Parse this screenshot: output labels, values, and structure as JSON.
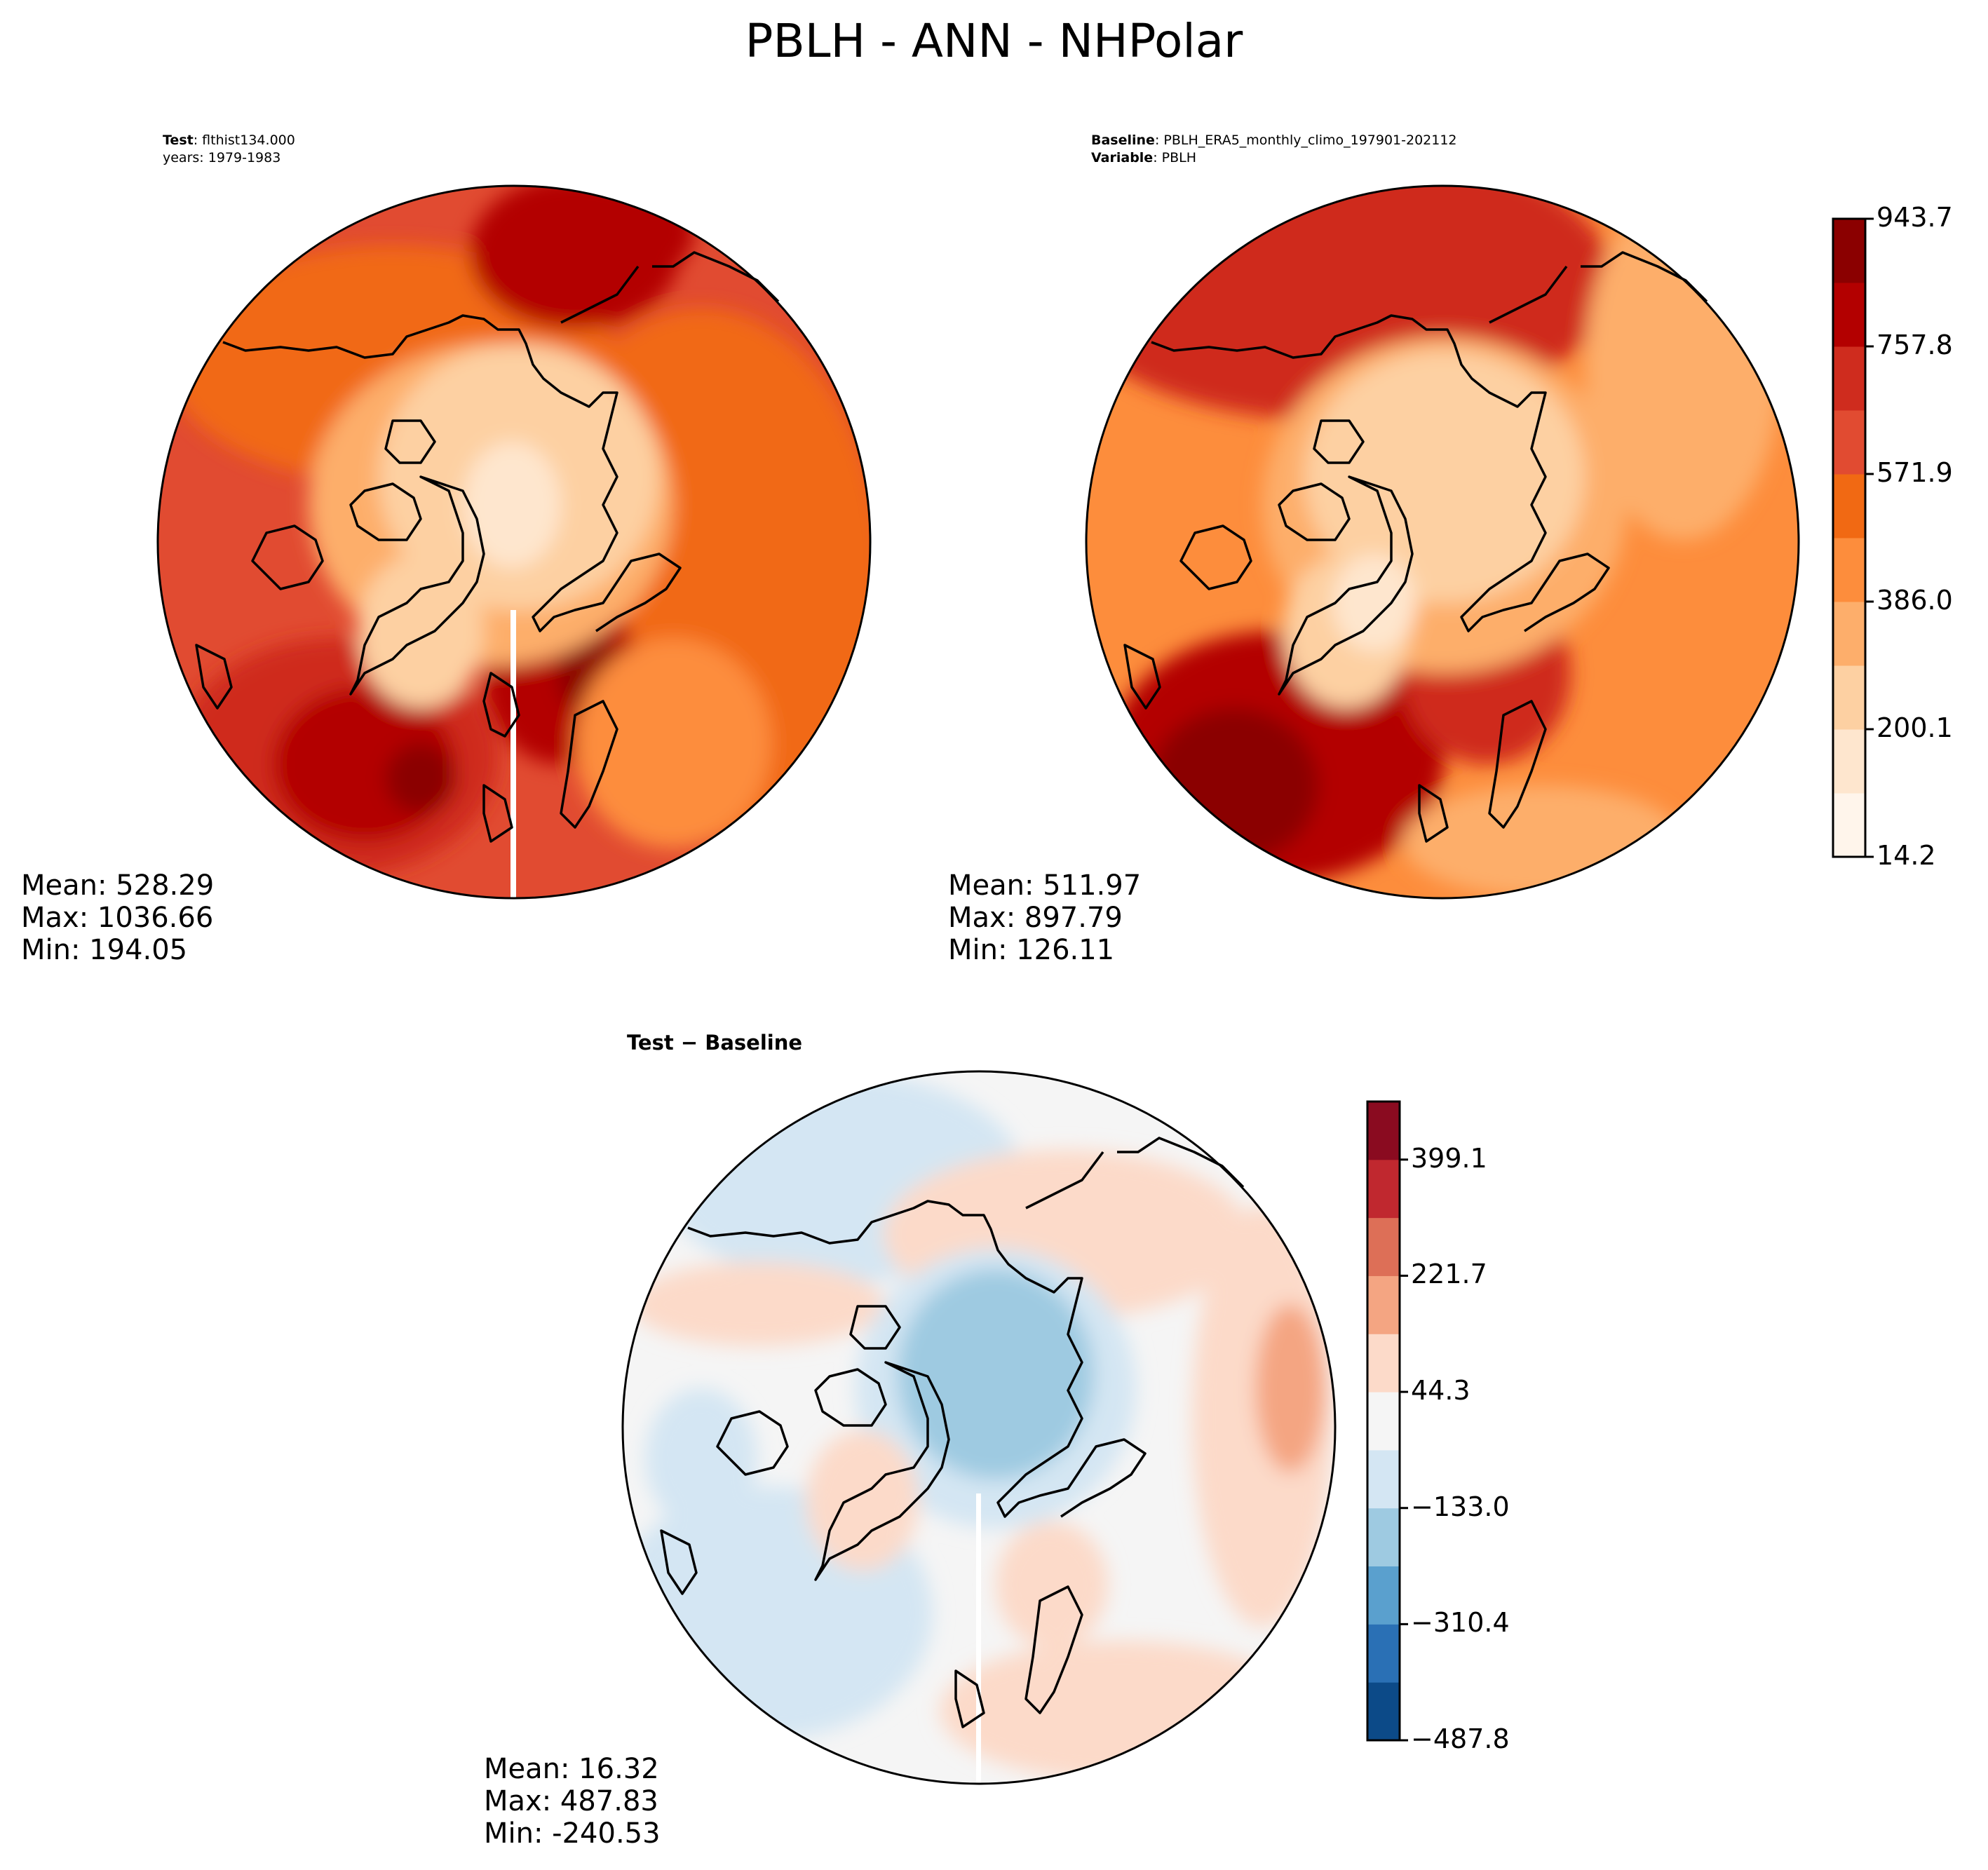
{
  "title": "PBLH - ANN - NHPolar",
  "panels": {
    "test": {
      "label": "Test",
      "name": "flthist134.000",
      "years_label": "years",
      "years": "1979-1983",
      "stats": {
        "mean": "Mean: 528.29",
        "max": "Max: 1036.66",
        "min": "Min: 194.05"
      }
    },
    "baseline": {
      "label": "Baseline",
      "name": "PBLH_ERA5_monthly_climo_197901-202112",
      "variable_label": "Variable",
      "variable": "PBLH",
      "stats": {
        "mean": "Mean: 511.97",
        "max": "Max: 897.79",
        "min": "Min: 126.11"
      }
    },
    "diff": {
      "title": "Test − Baseline",
      "stats": {
        "mean": "Mean: 16.32",
        "max": "Max: 487.83",
        "min": "Min: -240.53"
      }
    }
  },
  "colorbars": {
    "field": {
      "colormap": "OrRd",
      "colors": [
        "#fff5eb",
        "#fee6ce",
        "#fdd0a2",
        "#fdae6b",
        "#fd8d3c",
        "#f16913",
        "#e14b31",
        "#cf2c1e",
        "#b30000",
        "#8b0000"
      ],
      "ticks": [
        "14.2",
        "200.1",
        "386.0",
        "571.9",
        "757.8",
        "943.7"
      ]
    },
    "diff": {
      "colormap": "RdBu_r",
      "colors": [
        "#0c4a88",
        "#2a70b5",
        "#5aa0ce",
        "#9ecae1",
        "#d4e6f3",
        "#f5f5f5",
        "#fcdac9",
        "#f4a582",
        "#dd6f57",
        "#c0282f",
        "#8a0b20"
      ],
      "ticks": [
        "-487.8",
        "-310.4",
        "-133.0",
        "44.3",
        "221.7",
        "399.1"
      ]
    }
  }
}
